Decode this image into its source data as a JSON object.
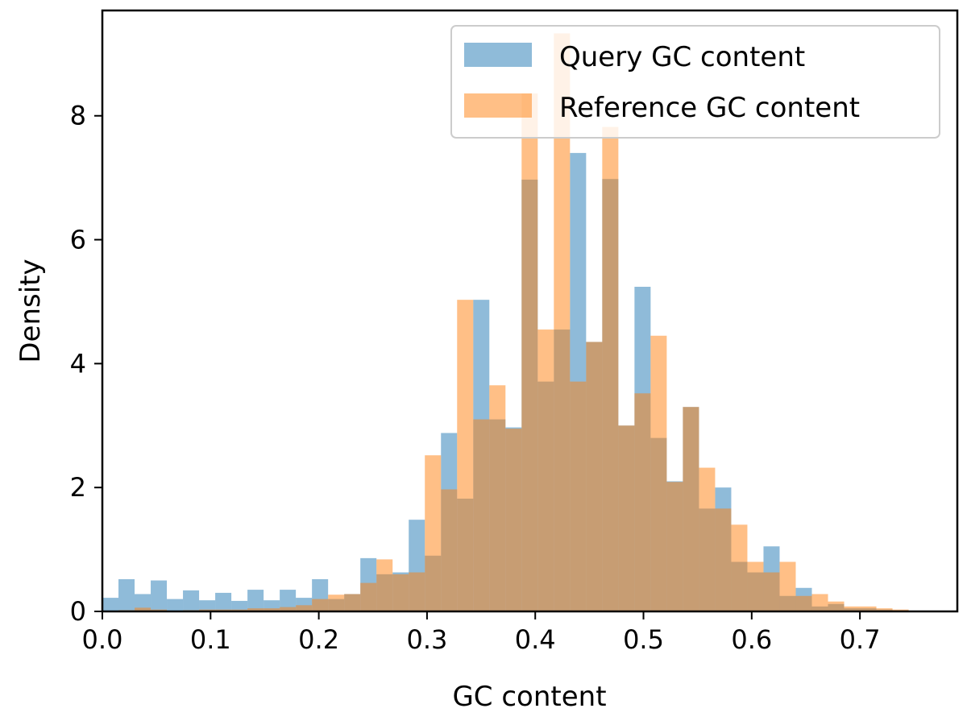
{
  "chart_data": {
    "type": "bar",
    "subtype": "overlaid-histogram",
    "xlabel": "GC content",
    "ylabel": "Density",
    "xlim": [
      0,
      0.79
    ],
    "ylim": [
      0,
      9.7
    ],
    "xticks": [
      0.0,
      0.1,
      0.2,
      0.3,
      0.4,
      0.5,
      0.6,
      0.7
    ],
    "xtick_labels": [
      "0.0",
      "0.1",
      "0.2",
      "0.3",
      "0.4",
      "0.5",
      "0.6",
      "0.7"
    ],
    "yticks": [
      0,
      2,
      4,
      6,
      8
    ],
    "ytick_labels": [
      "0",
      "2",
      "4",
      "6",
      "8"
    ],
    "bin_width": 0.0149,
    "bin_start": 0.0,
    "legend_position": "top-right",
    "grid": false,
    "series": [
      {
        "name": "Query GC content",
        "color": "#1f77b4",
        "alpha": 0.5,
        "values": [
          0.22,
          0.52,
          0.28,
          0.5,
          0.2,
          0.34,
          0.18,
          0.3,
          0.17,
          0.35,
          0.18,
          0.35,
          0.22,
          0.52,
          0.2,
          0.28,
          0.86,
          0.6,
          0.63,
          1.48,
          0.9,
          2.88,
          1.82,
          5.03,
          3.1,
          2.97,
          6.97,
          3.71,
          4.55,
          7.4,
          4.35,
          6.98,
          3.0,
          5.24,
          2.8,
          2.1,
          3.3,
          1.66,
          2.0,
          0.8,
          0.63,
          1.05,
          0.25,
          0.38,
          0.08,
          0.12,
          0.05,
          0.05,
          0.03,
          0.02,
          0.01,
          0.005,
          0.005
        ]
      },
      {
        "name": "Reference GC content",
        "color": "#ff7f0e",
        "alpha": 0.5,
        "values": [
          0.01,
          0.02,
          0.06,
          0.03,
          0.01,
          0.02,
          0.03,
          0.03,
          0.03,
          0.05,
          0.05,
          0.07,
          0.1,
          0.2,
          0.27,
          0.28,
          0.46,
          0.84,
          0.6,
          0.63,
          2.52,
          1.97,
          5.03,
          3.1,
          3.65,
          2.95,
          8.36,
          4.55,
          9.33,
          3.71,
          4.35,
          7.82,
          3.0,
          3.52,
          4.45,
          2.09,
          3.3,
          2.32,
          1.66,
          1.4,
          0.8,
          0.63,
          0.8,
          0.25,
          0.28,
          0.16,
          0.08,
          0.08,
          0.05,
          0.03,
          0.01,
          0.005,
          0.005
        ]
      }
    ]
  }
}
